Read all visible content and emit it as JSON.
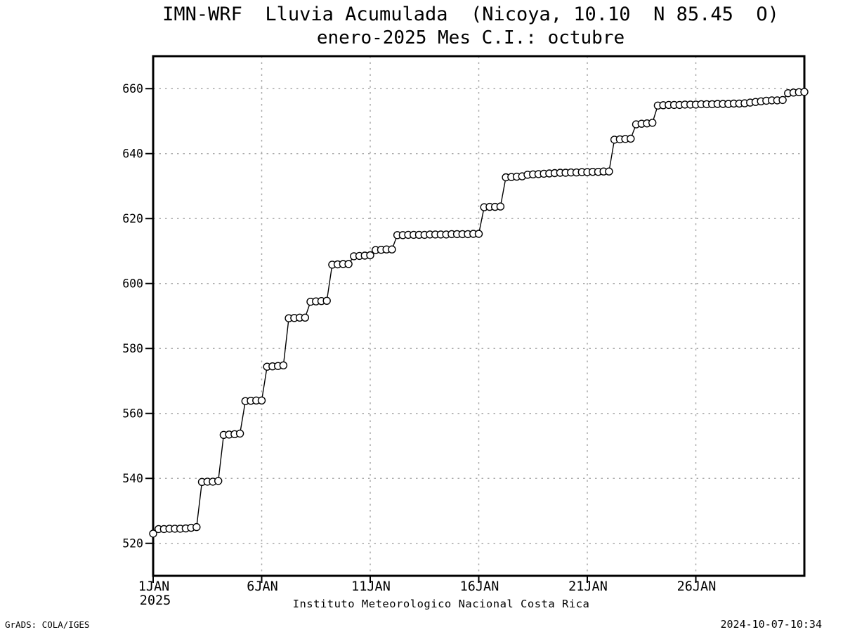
{
  "header": {
    "title_line1": "IMN-WRF  Lluvia Acumulada  (Nicoya, 10.10  N 85.45  O)",
    "title_line2": "enero-2025 Mes C.I.: octubre"
  },
  "footer": {
    "caption": "Instituto Meteorologico Nacional Costa Rica",
    "grads_credit": "GrADS: COLA/IGES",
    "timestamp": "2024-10-07-10:34"
  },
  "colors": {
    "background": "#ffffff",
    "line": "#000000",
    "marker_fill": "#ffffff",
    "grid": "#a9a9a9",
    "frame": "#000000",
    "text": "#000000"
  },
  "chart_data": {
    "type": "line",
    "title": "IMN-WRF Lluvia Acumulada (Nicoya, 10.10 N 85.45 O)",
    "subtitle": "enero-2025 Mes C.I.: octubre",
    "xlabel": "Instituto Meteorologico Nacional Costa Rica",
    "ylabel": "",
    "marker": "open-circle",
    "grid": true,
    "ylim": [
      510,
      670
    ],
    "xlim_days": [
      1,
      31
    ],
    "y_ticks": [
      520,
      540,
      560,
      580,
      600,
      620,
      640,
      660
    ],
    "x_tick_days": [
      1,
      6,
      11,
      16,
      21,
      26
    ],
    "x_tick_labels": [
      "1JAN",
      "6JAN",
      "11JAN",
      "16JAN",
      "21JAN",
      "26JAN"
    ],
    "x_year_label": "2025",
    "series": [
      {
        "name": "lluvia_acumulada_mm",
        "start": "1JAN2025 00Z",
        "interval_hours": 6,
        "values": [
          523.0,
          524.4,
          524.4,
          524.5,
          524.5,
          524.5,
          524.6,
          524.8,
          525.0,
          538.9,
          539.0,
          539.0,
          539.2,
          553.4,
          553.5,
          553.6,
          553.8,
          563.8,
          563.9,
          564.0,
          564.0,
          574.4,
          574.5,
          574.6,
          574.8,
          589.3,
          589.4,
          589.5,
          589.5,
          594.4,
          594.5,
          594.6,
          594.7,
          605.8,
          605.9,
          606.0,
          606.0,
          608.4,
          608.5,
          608.6,
          608.7,
          610.3,
          610.4,
          610.5,
          610.5,
          614.9,
          614.9,
          615.0,
          615.0,
          615.0,
          615.0,
          615.1,
          615.1,
          615.1,
          615.1,
          615.2,
          615.2,
          615.2,
          615.2,
          615.3,
          615.3,
          623.5,
          623.6,
          623.6,
          623.7,
          632.7,
          632.8,
          632.9,
          633.0,
          633.5,
          633.6,
          633.7,
          633.8,
          633.9,
          634.0,
          634.1,
          634.1,
          634.2,
          634.2,
          634.3,
          634.3,
          634.4,
          634.4,
          634.5,
          634.5,
          644.3,
          644.4,
          644.5,
          644.6,
          649.0,
          649.2,
          649.3,
          649.5,
          654.8,
          654.9,
          655.0,
          655.0,
          655.0,
          655.1,
          655.1,
          655.1,
          655.2,
          655.2,
          655.2,
          655.3,
          655.3,
          655.3,
          655.4,
          655.4,
          655.5,
          655.7,
          655.9,
          656.1,
          656.3,
          656.4,
          656.4,
          656.5,
          658.6,
          658.8,
          658.9,
          659.0
        ]
      }
    ]
  }
}
